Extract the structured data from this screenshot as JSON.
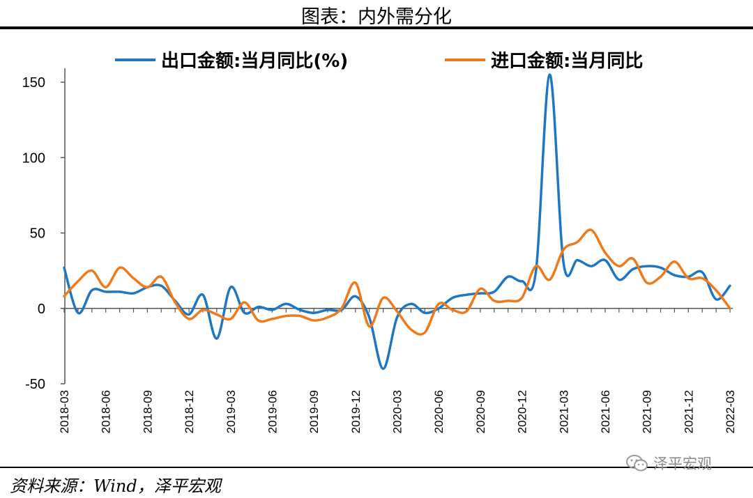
{
  "header": {
    "title": "图表：内外需分化"
  },
  "footer": {
    "source": "资料来源：Wind，泽平宏观",
    "watermark": "泽平宏观"
  },
  "chart_data": {
    "type": "line",
    "title": "",
    "xlabel": "",
    "ylabel": "",
    "ylim": [
      -50,
      150
    ],
    "yticks": [
      -50,
      0,
      50,
      100,
      150
    ],
    "grid": false,
    "legend_position": "top",
    "x": [
      "2018-03",
      "2018-04",
      "2018-05",
      "2018-06",
      "2018-07",
      "2018-08",
      "2018-09",
      "2018-10",
      "2018-11",
      "2018-12",
      "2019-01",
      "2019-02",
      "2019-03",
      "2019-04",
      "2019-05",
      "2019-06",
      "2019-07",
      "2019-08",
      "2019-09",
      "2019-10",
      "2019-11",
      "2019-12",
      "2020-01",
      "2020-02",
      "2020-03",
      "2020-04",
      "2020-05",
      "2020-06",
      "2020-07",
      "2020-08",
      "2020-09",
      "2020-10",
      "2020-11",
      "2020-12",
      "2021-01",
      "2021-02",
      "2021-03",
      "2021-04",
      "2021-05",
      "2021-06",
      "2021-07",
      "2021-08",
      "2021-09",
      "2021-10",
      "2021-11",
      "2021-12",
      "2022-01",
      "2022-02",
      "2022-03"
    ],
    "xtick_labels": [
      "2018-03",
      "2018-06",
      "2018-09",
      "2018-12",
      "2019-03",
      "2019-06",
      "2019-09",
      "2019-12",
      "2020-03",
      "2020-06",
      "2020-09",
      "2020-12",
      "2021-03",
      "2021-06",
      "2021-09",
      "2021-12",
      "2022-03"
    ],
    "series": [
      {
        "name": "出口金额:当月同比(%)",
        "color": "#1f77c4",
        "values": [
          27,
          -3,
          12,
          11,
          11,
          10,
          14,
          15,
          5,
          -4,
          9,
          -20,
          14,
          -3,
          1,
          -1,
          3,
          -1,
          -3,
          -1,
          -1,
          8,
          -6,
          -40,
          -6,
          3,
          -3,
          0,
          7,
          9,
          10,
          11,
          21,
          18,
          24,
          155,
          30,
          32,
          28,
          32,
          19,
          26,
          28,
          27,
          22,
          21,
          24,
          6,
          15
        ]
      },
      {
        "name": "进口金额:当月同比",
        "color": "#f07a1a",
        "values": [
          8,
          18,
          25,
          14,
          27,
          20,
          14,
          21,
          4,
          -7,
          -1,
          -4,
          -7,
          4,
          -8,
          -7,
          -5,
          -5,
          -8,
          -6,
          0,
          17,
          -12,
          7,
          -2,
          -14,
          -16,
          3,
          -1,
          -2,
          13,
          5,
          5,
          7,
          28,
          19,
          39,
          44,
          52,
          37,
          28,
          33,
          17,
          21,
          31,
          20,
          20,
          12,
          0
        ]
      }
    ]
  }
}
